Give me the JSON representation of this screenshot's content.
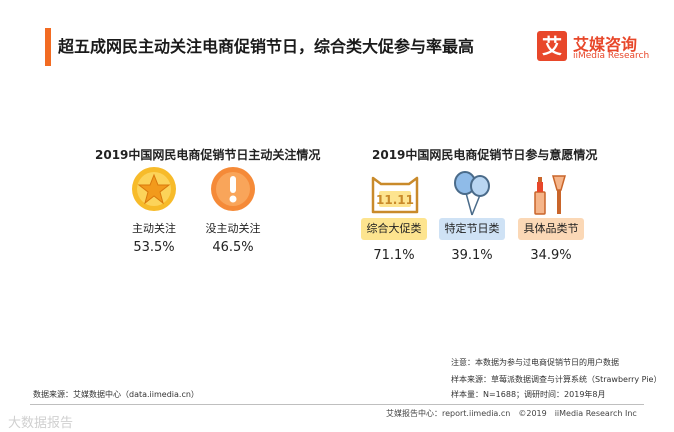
{
  "headline": "超五成网民主动关注电商促销节日，综合类大促参与率最高",
  "brand": {
    "mark": "艾",
    "name_cn": "艾媒咨询",
    "name_en": "iiMedia Research",
    "color": "#e8472a"
  },
  "accent_color": "#f26b22",
  "chart_data": [
    {
      "type": "table",
      "title": "2019中国网民电商促销节日主动关注情况",
      "categories": [
        "主动关注",
        "没主动关注"
      ],
      "values": [
        "53.5%",
        "46.5%"
      ],
      "icons": [
        "star-icon",
        "exclamation-icon"
      ],
      "colors": [
        "#f7bb2a",
        "#f58a38"
      ]
    },
    {
      "type": "table",
      "title": "2019中国网民电商促销节日参与意愿情况",
      "categories": [
        "综合大促类",
        "特定节日类",
        "具体品类节"
      ],
      "values": [
        "71.1%",
        "39.1%",
        "34.9%"
      ],
      "icons": [
        "double-eleven-icon",
        "balloons-icon",
        "cosmetics-icon"
      ],
      "colors": [
        "#fde48f",
        "#cfe2f5",
        "#fbd8b6"
      ]
    }
  ],
  "notes": {
    "note": "注意：本数据为参与过电商促销节日的用户数据",
    "sample_source": "样本来源：草莓派数据调查与计算系统（Strawberry Pie）",
    "sample_size": "样本量：N=1688；调研时间：2019年8月"
  },
  "source": "数据来源：艾媒数据中心（data.iimedia.cn）",
  "footer": "艾媒报告中心：report.iimedia.cn　©2019　iiMedia Research Inc",
  "watermark": "大数据报告"
}
